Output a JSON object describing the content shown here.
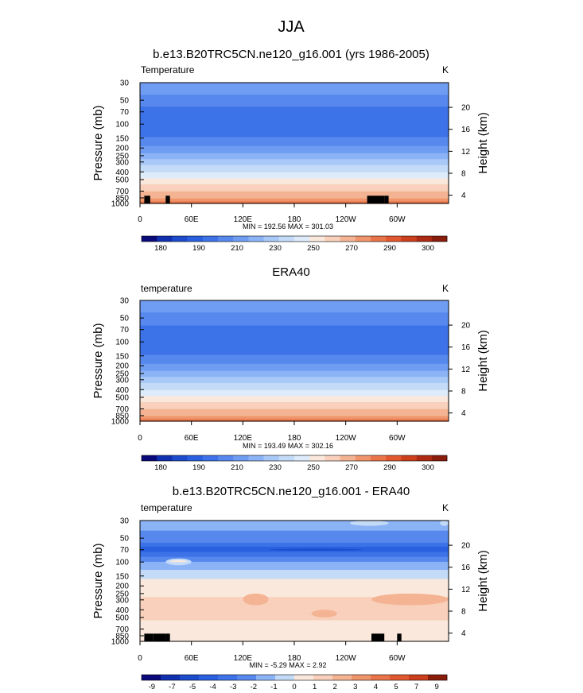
{
  "figure": {
    "title": "JJA"
  },
  "chart_data": [
    {
      "type": "heatmap",
      "panel": "model",
      "title": "b.e13.B20TRC5CN.ne120_g16.001 (yrs 1986-2005)",
      "left_label": "Temperature",
      "units": "K",
      "ylabel": "Pressure (mb)",
      "ylabel_right": "Height (km)",
      "x_ticks": [
        "0",
        "60E",
        "120E",
        "180",
        "120W",
        "60W"
      ],
      "x_tick_values": [
        0,
        60,
        120,
        180,
        240,
        300
      ],
      "xlim": [
        0,
        360
      ],
      "pressure_ticks": [
        "30",
        "50",
        "70",
        "100",
        "150",
        "200",
        "250",
        "300",
        "400",
        "500",
        "700",
        "850",
        "1000"
      ],
      "pressure_values": [
        30,
        50,
        70,
        100,
        150,
        200,
        250,
        300,
        400,
        500,
        700,
        850,
        1000
      ],
      "height_ticks": [
        "4",
        "8",
        "12",
        "16",
        "20"
      ],
      "height_values": [
        4,
        8,
        12,
        16,
        20
      ],
      "ylim": [
        1000,
        30
      ],
      "stats": "MIN = 192.56  MAX = 301.03",
      "min": 192.56,
      "max": 301.03,
      "profile_levels": [
        1000,
        930,
        850,
        780,
        700,
        600,
        500,
        450,
        400,
        350,
        300,
        275,
        250,
        225,
        200,
        175,
        150,
        125,
        100,
        85,
        70,
        60,
        50,
        40,
        30
      ],
      "profile_values": [
        298,
        294,
        288,
        284,
        280,
        272,
        262,
        257,
        250,
        243,
        236,
        230,
        224,
        218,
        212,
        207,
        201,
        196,
        193,
        193,
        195,
        200,
        205,
        212,
        218
      ],
      "topography_mask": [
        [
          5,
          12,
          60,
          48,
          80
        ],
        [
          30,
          35,
          100,
          80,
          80
        ],
        [
          265,
          285,
          120,
          60,
          60
        ],
        [
          285,
          290,
          100,
          50,
          50
        ]
      ]
    },
    {
      "type": "heatmap",
      "panel": "obs",
      "title": "ERA40",
      "left_label": "temperature",
      "units": "K",
      "ylabel": "Pressure (mb)",
      "ylabel_right": "Height (km)",
      "x_ticks": [
        "0",
        "60E",
        "120E",
        "180",
        "120W",
        "60W"
      ],
      "x_tick_values": [
        0,
        60,
        120,
        180,
        240,
        300
      ],
      "xlim": [
        0,
        360
      ],
      "pressure_ticks": [
        "30",
        "50",
        "70",
        "100",
        "150",
        "200",
        "250",
        "300",
        "400",
        "500",
        "700",
        "850",
        "1000"
      ],
      "pressure_values": [
        30,
        50,
        70,
        100,
        150,
        200,
        250,
        300,
        400,
        500,
        700,
        850,
        1000
      ],
      "height_ticks": [
        "4",
        "8",
        "12",
        "16",
        "20"
      ],
      "height_values": [
        4,
        8,
        12,
        16,
        20
      ],
      "ylim": [
        1000,
        30
      ],
      "stats": "MIN = 193.49  MAX = 302.16",
      "min": 193.49,
      "max": 302.16,
      "profile_levels": [
        1000,
        930,
        850,
        780,
        700,
        600,
        500,
        450,
        400,
        350,
        300,
        275,
        250,
        225,
        200,
        175,
        150,
        125,
        100,
        85,
        70,
        60,
        50,
        40,
        30
      ],
      "profile_values": [
        300,
        295,
        288,
        284,
        280,
        272,
        262,
        257,
        250,
        243,
        236,
        230,
        224,
        218,
        212,
        207,
        201,
        197,
        195,
        196,
        197,
        201,
        206,
        212,
        218
      ],
      "topography_mask": []
    },
    {
      "type": "heatmap",
      "panel": "difference",
      "title": "b.e13.B20TRC5CN.ne120_g16.001 - ERA40",
      "left_label": "temperature",
      "units": "K",
      "ylabel": "Pressure (mb)",
      "ylabel_right": "Height (km)",
      "x_ticks": [
        "0",
        "60E",
        "120E",
        "180",
        "120W",
        "60W"
      ],
      "x_tick_values": [
        0,
        60,
        120,
        180,
        240,
        300
      ],
      "xlim": [
        0,
        360
      ],
      "pressure_ticks": [
        "30",
        "50",
        "70",
        "100",
        "150",
        "200",
        "250",
        "300",
        "400",
        "500",
        "700",
        "850",
        "1000"
      ],
      "pressure_values": [
        30,
        50,
        70,
        100,
        150,
        200,
        250,
        300,
        400,
        500,
        700,
        850,
        1000
      ],
      "height_ticks": [
        "4",
        "8",
        "12",
        "16",
        "20"
      ],
      "height_values": [
        4,
        8,
        12,
        16,
        20
      ],
      "ylim": [
        1000,
        30
      ],
      "stats": "MIN = -5.29  MAX =  2.92",
      "min": -5.29,
      "max": 2.92,
      "profile_levels": [
        1000,
        930,
        850,
        780,
        700,
        600,
        500,
        400,
        300,
        250,
        200,
        175,
        150,
        125,
        100,
        85,
        75,
        70,
        65,
        60,
        55,
        50,
        40,
        30
      ],
      "profile_values": [
        0.5,
        0.5,
        0.3,
        0.5,
        0.7,
        0.8,
        1.2,
        1.5,
        1.2,
        0.8,
        0.4,
        0.2,
        -0.3,
        -1.0,
        -2.0,
        -3.0,
        -4.0,
        -4.5,
        -4.0,
        -3.5,
        -2.8,
        -2.5,
        -2.0,
        -1.8
      ],
      "patches": [
        [
          120,
          150,
          350,
          250,
          2
        ],
        [
          200,
          230,
          500,
          400,
          2
        ],
        [
          270,
          360,
          350,
          250,
          2
        ],
        [
          30,
          60,
          110,
          90,
          -1
        ],
        [
          35,
          55,
          100,
          95,
          0
        ],
        [
          100,
          130,
          250,
          220,
          0
        ],
        [
          60,
          80,
          600,
          550,
          0
        ],
        [
          150,
          260,
          72,
          68,
          -5.2
        ],
        [
          275,
          300,
          700,
          600,
          0
        ],
        [
          245,
          290,
          35,
          30,
          -1
        ],
        [
          350,
          360,
          35,
          30,
          -1
        ]
      ],
      "topography_mask": [
        [
          5,
          15,
          60,
          48,
          50
        ],
        [
          15,
          30,
          80,
          65,
          65
        ],
        [
          30,
          35,
          100,
          80,
          80
        ],
        [
          270,
          285,
          120,
          60,
          60
        ],
        [
          300,
          305,
          100,
          50,
          50
        ]
      ]
    }
  ],
  "colorbars": [
    {
      "labels": [
        "180",
        "190",
        "210",
        "230",
        "250",
        "270",
        "290",
        "300"
      ],
      "levels": [
        175,
        180,
        185,
        190,
        200,
        210,
        220,
        230,
        240,
        250,
        260,
        270,
        280,
        290,
        295,
        300
      ],
      "colors": [
        "#0a0a7a",
        "#1030b0",
        "#1c4ccc",
        "#2860e0",
        "#3d72e8",
        "#5688ee",
        "#6f9df2",
        "#8bb3f5",
        "#a8c9f7",
        "#c4dbf8",
        "#ddebfa",
        "#fae8dc",
        "#f8d0bb",
        "#f4b493",
        "#f0946b",
        "#ea7449",
        "#e2582e",
        "#cc3f1c",
        "#ad2b12",
        "#8a1c0c"
      ]
    },
    {
      "labels": [
        "180",
        "190",
        "210",
        "230",
        "250",
        "270",
        "290",
        "300"
      ],
      "levels": [
        175,
        180,
        185,
        190,
        200,
        210,
        220,
        230,
        240,
        250,
        260,
        270,
        280,
        290,
        295,
        300
      ],
      "colors": [
        "#0a0a7a",
        "#1030b0",
        "#1c4ccc",
        "#2860e0",
        "#3d72e8",
        "#5688ee",
        "#6f9df2",
        "#8bb3f5",
        "#a8c9f7",
        "#c4dbf8",
        "#ddebfa",
        "#fae8dc",
        "#f8d0bb",
        "#f4b493",
        "#f0946b",
        "#ea7449",
        "#e2582e",
        "#cc3f1c",
        "#ad2b12",
        "#8a1c0c"
      ]
    },
    {
      "labels": [
        "-9",
        "-7",
        "-5",
        "-4",
        "-3",
        "-2",
        "-1",
        "0",
        "1",
        "2",
        "3",
        "4",
        "5",
        "7",
        "9"
      ],
      "levels": [
        -9,
        -7,
        -5,
        -4,
        -3,
        -2,
        -1,
        0,
        1,
        2,
        3,
        4,
        5,
        7,
        9
      ],
      "colors": [
        "#0a0a7a",
        "#1030b0",
        "#1c4ccc",
        "#2860e0",
        "#3d72e8",
        "#5688ee",
        "#8bb3f5",
        "#c4dbf8",
        "#fae8dc",
        "#f8d0bb",
        "#f4b493",
        "#f0946b",
        "#ea7449",
        "#e2582e",
        "#cc3f1c",
        "#8a1c0c"
      ]
    }
  ]
}
